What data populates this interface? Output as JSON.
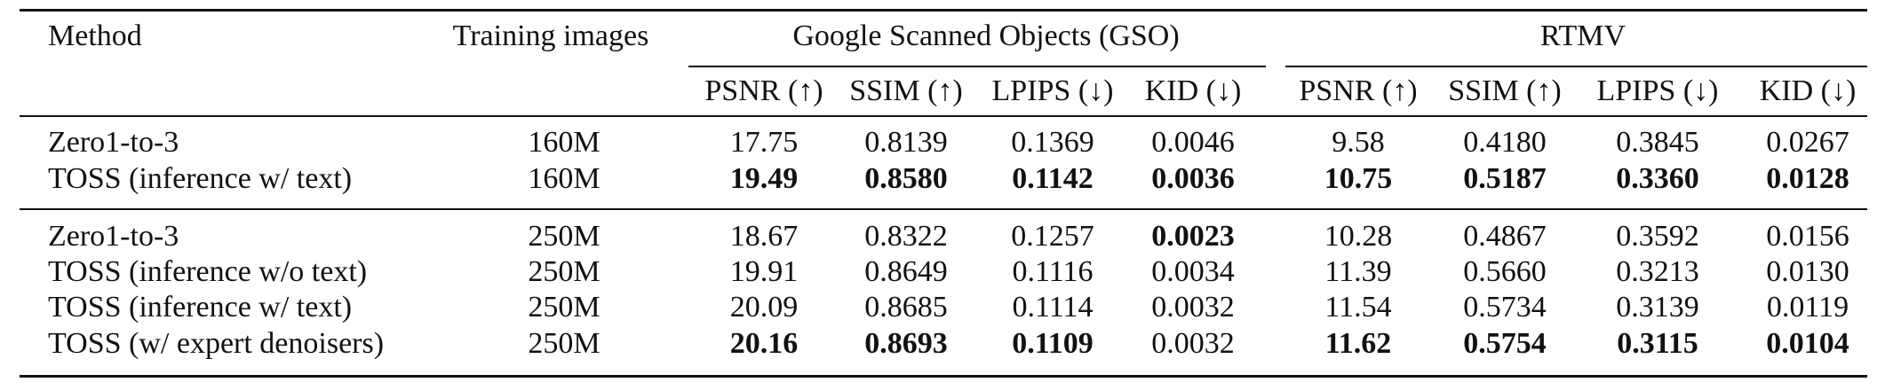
{
  "headers": {
    "method": "Method",
    "training": "Training images",
    "group_gso": "Google Scanned Objects (GSO)",
    "group_rtmv": "RTMV",
    "metrics": [
      "PSNR (↑)",
      "SSIM (↑)",
      "LPIPS (↓)",
      "KID (↓)",
      "PSNR (↑)",
      "SSIM (↑)",
      "LPIPS (↓)",
      "KID (↓)"
    ]
  },
  "rows": [
    {
      "method": "Zero1-to-3",
      "training": "160M",
      "values": [
        "17.75",
        "0.8139",
        "0.1369",
        "0.0046",
        "9.58",
        "0.4180",
        "0.3845",
        "0.0267"
      ],
      "bold": [
        false,
        false,
        false,
        false,
        false,
        false,
        false,
        false
      ]
    },
    {
      "method": "TOSS (inference w/ text)",
      "training": "160M",
      "values": [
        "19.49",
        "0.8580",
        "0.1142",
        "0.0036",
        "10.75",
        "0.5187",
        "0.3360",
        "0.0128"
      ],
      "bold": [
        true,
        true,
        true,
        true,
        true,
        true,
        true,
        true
      ]
    },
    {
      "method": "Zero1-to-3",
      "training": "250M",
      "values": [
        "18.67",
        "0.8322",
        "0.1257",
        "0.0023",
        "10.28",
        "0.4867",
        "0.3592",
        "0.0156"
      ],
      "bold": [
        false,
        false,
        false,
        true,
        false,
        false,
        false,
        false
      ]
    },
    {
      "method": "TOSS (inference w/o text)",
      "training": "250M",
      "values": [
        "19.91",
        "0.8649",
        "0.1116",
        "0.0034",
        "11.39",
        "0.5660",
        "0.3213",
        "0.0130"
      ],
      "bold": [
        false,
        false,
        false,
        false,
        false,
        false,
        false,
        false
      ]
    },
    {
      "method": "TOSS (inference w/ text)",
      "training": "250M",
      "values": [
        "20.09",
        "0.8685",
        "0.1114",
        "0.0032",
        "11.54",
        "0.5734",
        "0.3139",
        "0.0119"
      ],
      "bold": [
        false,
        false,
        false,
        false,
        false,
        false,
        false,
        false
      ]
    },
    {
      "method": "TOSS (w/ expert denoisers)",
      "training": "250M",
      "values": [
        "20.16",
        "0.8693",
        "0.1109",
        "0.0032",
        "11.62",
        "0.5754",
        "0.3115",
        "0.0104"
      ],
      "bold": [
        true,
        true,
        true,
        false,
        true,
        true,
        true,
        true
      ]
    }
  ]
}
